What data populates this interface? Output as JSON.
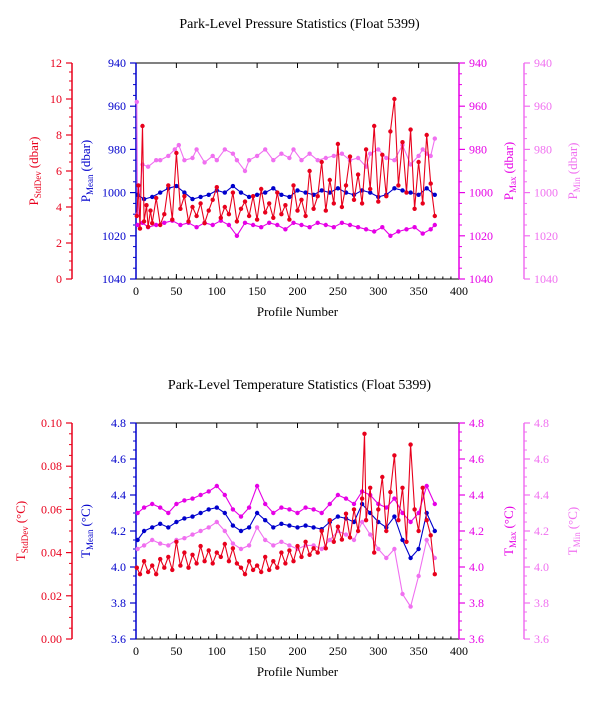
{
  "chart_data": [
    {
      "type": "line",
      "title": "Park-Level Pressure Statistics (Float 5399)",
      "xlabel": "Profile Number",
      "xlim": [
        0,
        400
      ],
      "x_ticks": [
        "0",
        "50",
        "100",
        "150",
        "200",
        "250",
        "300",
        "350",
        "400"
      ],
      "grid": false,
      "axes": [
        {
          "id": "std",
          "label": "P",
          "label_sub": "StdDev",
          "label_unit": "(dbar)",
          "color": "#e8001c",
          "range": [
            0,
            12
          ],
          "ticks": [
            "0",
            "2",
            "4",
            "6",
            "8",
            "10",
            "12"
          ],
          "inverted": false
        },
        {
          "id": "mean",
          "label": "P",
          "label_sub": "Mean",
          "label_unit": "(dbar)",
          "color": "#0000cc",
          "range": [
            940,
            1040
          ],
          "ticks": [
            "940",
            "960",
            "980",
            "1000",
            "1020",
            "1040"
          ],
          "inverted": true
        },
        {
          "id": "max",
          "label": "P",
          "label_sub": "Max",
          "label_unit": "(dbar)",
          "color": "#e600e6",
          "range": [
            940,
            1040
          ],
          "ticks": [
            "940",
            "960",
            "980",
            "1000",
            "1020",
            "1040"
          ],
          "inverted": true
        },
        {
          "id": "min",
          "label": "P",
          "label_sub": "Min",
          "label_unit": "(dbar)",
          "color": "#f070f0",
          "range": [
            940,
            1040
          ],
          "ticks": [
            "940",
            "960",
            "980",
            "1000",
            "1020",
            "1040"
          ],
          "inverted": true
        }
      ],
      "series": [
        {
          "axis": "min",
          "color": "#f070f0",
          "x": [
            1,
            2,
            8,
            15,
            25,
            30,
            40,
            48,
            53,
            60,
            70,
            75,
            85,
            95,
            100,
            110,
            120,
            125,
            135,
            140,
            150,
            160,
            170,
            180,
            190,
            195,
            205,
            215,
            225,
            235,
            245,
            255,
            265,
            275,
            285,
            290,
            300,
            310,
            320,
            330,
            340,
            350,
            355,
            360,
            365,
            370
          ],
          "values": [
            958,
            1010,
            987,
            988,
            985,
            985,
            983,
            980,
            978,
            985,
            984,
            980,
            986,
            983,
            985,
            980,
            982,
            985,
            990,
            985,
            983,
            980,
            985,
            982,
            984,
            980,
            985,
            982,
            985,
            984,
            983,
            982,
            985,
            984,
            988,
            982,
            980,
            984,
            985,
            978,
            987,
            983,
            980,
            982,
            983,
            975
          ]
        },
        {
          "axis": "max",
          "color": "#e600e6",
          "x": [
            2,
            8,
            15,
            25,
            35,
            45,
            55,
            65,
            75,
            85,
            95,
            105,
            115,
            125,
            135,
            145,
            155,
            165,
            175,
            185,
            195,
            205,
            215,
            225,
            235,
            245,
            255,
            265,
            275,
            285,
            295,
            305,
            315,
            325,
            335,
            345,
            355,
            365,
            370
          ],
          "values": [
            1015,
            1014,
            1016,
            1015,
            1014,
            1013,
            1015,
            1014,
            1016,
            1014,
            1015,
            1013,
            1015,
            1020,
            1014,
            1015,
            1016,
            1014,
            1015,
            1017,
            1014,
            1015,
            1016,
            1014,
            1015,
            1016,
            1014,
            1015,
            1016,
            1017,
            1018,
            1016,
            1020,
            1018,
            1017,
            1016,
            1019,
            1017,
            1015
          ]
        },
        {
          "axis": "mean",
          "color": "#0000cc",
          "x": [
            2,
            10,
            20,
            30,
            40,
            50,
            60,
            70,
            80,
            90,
            100,
            110,
            120,
            130,
            140,
            150,
            160,
            170,
            180,
            190,
            200,
            210,
            220,
            230,
            240,
            250,
            260,
            270,
            280,
            290,
            300,
            310,
            320,
            330,
            340,
            350,
            360,
            370
          ],
          "values": [
            1001,
            1003,
            1002,
            1000,
            998,
            997,
            1000,
            1003,
            1002,
            1001,
            999,
            1000,
            997,
            1000,
            1002,
            1001,
            1000,
            998,
            1001,
            1002,
            999,
            1000,
            1001,
            999,
            1000,
            998,
            1000,
            1001,
            999,
            1000,
            1002,
            1001,
            998,
            999,
            1000,
            1001,
            998,
            1001
          ]
        },
        {
          "axis": "std",
          "color": "#e8001c",
          "x": [
            1,
            3,
            5,
            8,
            10,
            13,
            15,
            18,
            20,
            25,
            30,
            35,
            40,
            45,
            50,
            55,
            60,
            65,
            70,
            75,
            80,
            85,
            90,
            95,
            100,
            105,
            110,
            115,
            120,
            125,
            130,
            135,
            140,
            145,
            150,
            155,
            160,
            165,
            170,
            175,
            180,
            185,
            190,
            195,
            200,
            205,
            210,
            215,
            220,
            225,
            230,
            235,
            240,
            245,
            250,
            255,
            260,
            265,
            270,
            275,
            280,
            285,
            290,
            295,
            300,
            305,
            310,
            315,
            320,
            325,
            330,
            335,
            340,
            345,
            350,
            355,
            360,
            365,
            370
          ],
          "values": [
            3.5,
            5.2,
            2.8,
            8.5,
            3.2,
            4.1,
            2.9,
            3.8,
            3.1,
            4.5,
            3.0,
            3.6,
            5.2,
            3.3,
            7.0,
            3.9,
            4.6,
            3.2,
            4.0,
            3.5,
            4.2,
            3.1,
            3.8,
            4.4,
            5.1,
            3.4,
            4.0,
            3.6,
            4.8,
            3.2,
            3.9,
            4.3,
            3.5,
            4.6,
            3.3,
            5.0,
            3.7,
            4.2,
            3.4,
            4.8,
            3.6,
            4.1,
            3.3,
            5.2,
            3.8,
            4.4,
            3.5,
            6.0,
            3.9,
            4.6,
            6.5,
            3.8,
            5.5,
            4.2,
            7.5,
            4.0,
            5.2,
            6.8,
            4.4,
            5.8,
            4.2,
            7.2,
            5.0,
            8.5,
            4.3,
            6.9,
            4.6,
            8.2,
            10.0,
            5.2,
            7.6,
            4.8,
            8.3,
            3.9,
            6.5,
            4.2,
            8.0,
            5.3,
            3.5
          ]
        }
      ]
    },
    {
      "type": "line",
      "title": "Park-Level Temperature Statistics (Float 5399)",
      "xlabel": "Profile Number",
      "xlim": [
        0,
        400
      ],
      "x_ticks": [
        "0",
        "50",
        "100",
        "150",
        "200",
        "250",
        "300",
        "350",
        "400"
      ],
      "grid": false,
      "axes": [
        {
          "id": "std",
          "label": "T",
          "label_sub": "StdDev",
          "label_unit": "(°C)",
          "color": "#e8001c",
          "range": [
            0,
            0.1
          ],
          "ticks": [
            "0.00",
            "0.02",
            "0.04",
            "0.06",
            "0.08",
            "0.10"
          ],
          "inverted": false
        },
        {
          "id": "mean",
          "label": "T",
          "label_sub": "Mean",
          "label_unit": "(°C)",
          "color": "#0000cc",
          "range": [
            3.6,
            4.8
          ],
          "ticks": [
            "3.6",
            "3.8",
            "4.0",
            "4.2",
            "4.4",
            "4.6",
            "4.8"
          ],
          "inverted": false
        },
        {
          "id": "max",
          "label": "T",
          "label_sub": "Max",
          "label_unit": "(°C)",
          "color": "#e600e6",
          "range": [
            3.6,
            4.8
          ],
          "ticks": [
            "3.6",
            "3.8",
            "4.0",
            "4.2",
            "4.4",
            "4.6",
            "4.8"
          ],
          "inverted": false
        },
        {
          "id": "min",
          "label": "T",
          "label_sub": "Min",
          "label_unit": "(°C)",
          "color": "#f070f0",
          "range": [
            3.6,
            4.8
          ],
          "ticks": [
            "3.6",
            "3.8",
            "4.0",
            "4.2",
            "4.4",
            "4.6",
            "4.8"
          ],
          "inverted": false
        }
      ],
      "series": [
        {
          "axis": "max",
          "color": "#e600e6",
          "x": [
            2,
            10,
            20,
            30,
            40,
            50,
            60,
            70,
            80,
            90,
            100,
            110,
            120,
            130,
            140,
            150,
            160,
            170,
            180,
            190,
            200,
            210,
            220,
            230,
            240,
            250,
            260,
            270,
            280,
            290,
            300,
            310,
            320,
            330,
            340,
            350,
            360,
            370
          ],
          "values": [
            4.3,
            4.33,
            4.35,
            4.33,
            4.3,
            4.35,
            4.37,
            4.38,
            4.4,
            4.42,
            4.45,
            4.4,
            4.32,
            4.28,
            4.33,
            4.45,
            4.35,
            4.3,
            4.33,
            4.32,
            4.3,
            4.33,
            4.32,
            4.3,
            4.35,
            4.4,
            4.38,
            4.35,
            4.42,
            4.4,
            4.35,
            4.33,
            4.38,
            4.3,
            4.25,
            4.3,
            4.45,
            4.35
          ]
        },
        {
          "axis": "mean",
          "color": "#0000cc",
          "x": [
            2,
            10,
            20,
            30,
            40,
            50,
            60,
            70,
            80,
            90,
            100,
            110,
            120,
            130,
            140,
            150,
            160,
            170,
            180,
            190,
            200,
            210,
            220,
            230,
            240,
            250,
            260,
            270,
            280,
            290,
            300,
            310,
            320,
            330,
            340,
            350,
            360,
            370
          ],
          "values": [
            4.15,
            4.2,
            4.22,
            4.24,
            4.22,
            4.25,
            4.27,
            4.28,
            4.3,
            4.32,
            4.33,
            4.3,
            4.23,
            4.2,
            4.22,
            4.3,
            4.26,
            4.22,
            4.24,
            4.23,
            4.22,
            4.23,
            4.22,
            4.21,
            4.25,
            4.28,
            4.27,
            4.25,
            4.35,
            4.3,
            4.25,
            4.22,
            4.28,
            4.15,
            4.05,
            4.1,
            4.3,
            4.2
          ]
        },
        {
          "axis": "min",
          "color": "#f070f0",
          "x": [
            2,
            10,
            20,
            30,
            40,
            50,
            60,
            70,
            80,
            90,
            100,
            110,
            120,
            130,
            140,
            150,
            160,
            170,
            180,
            190,
            200,
            210,
            220,
            230,
            240,
            250,
            260,
            270,
            280,
            290,
            300,
            310,
            320,
            330,
            340,
            350,
            360,
            370
          ],
          "values": [
            4.1,
            4.12,
            4.15,
            4.13,
            4.12,
            4.15,
            4.16,
            4.18,
            4.2,
            4.22,
            4.25,
            4.2,
            4.13,
            4.1,
            4.12,
            4.22,
            4.15,
            4.12,
            4.14,
            4.12,
            4.1,
            4.12,
            4.12,
            4.1,
            4.15,
            4.2,
            4.18,
            4.15,
            4.25,
            4.18,
            4.1,
            4.05,
            4.1,
            3.85,
            3.78,
            3.95,
            4.15,
            4.05
          ]
        },
        {
          "axis": "std",
          "color": "#e8001c",
          "x": [
            1,
            5,
            10,
            15,
            20,
            25,
            30,
            35,
            40,
            45,
            50,
            55,
            60,
            65,
            70,
            75,
            80,
            85,
            90,
            95,
            100,
            105,
            110,
            115,
            120,
            125,
            130,
            135,
            140,
            145,
            150,
            155,
            160,
            165,
            170,
            175,
            180,
            185,
            190,
            195,
            200,
            205,
            210,
            215,
            220,
            225,
            230,
            235,
            240,
            245,
            250,
            255,
            260,
            265,
            270,
            275,
            280,
            283,
            285,
            290,
            295,
            300,
            305,
            310,
            315,
            320,
            325,
            330,
            335,
            340,
            345,
            350,
            355,
            360,
            365,
            370
          ],
          "values": [
            0.033,
            0.03,
            0.036,
            0.031,
            0.034,
            0.03,
            0.037,
            0.033,
            0.038,
            0.032,
            0.045,
            0.034,
            0.04,
            0.033,
            0.039,
            0.035,
            0.043,
            0.036,
            0.041,
            0.035,
            0.04,
            0.038,
            0.044,
            0.036,
            0.042,
            0.035,
            0.033,
            0.03,
            0.036,
            0.032,
            0.034,
            0.031,
            0.038,
            0.032,
            0.036,
            0.033,
            0.04,
            0.035,
            0.041,
            0.036,
            0.043,
            0.038,
            0.045,
            0.039,
            0.042,
            0.04,
            0.05,
            0.042,
            0.055,
            0.045,
            0.052,
            0.046,
            0.058,
            0.047,
            0.06,
            0.05,
            0.065,
            0.095,
            0.055,
            0.07,
            0.04,
            0.06,
            0.075,
            0.05,
            0.068,
            0.085,
            0.055,
            0.07,
            0.045,
            0.09,
            0.06,
            0.05,
            0.07,
            0.055,
            0.048,
            0.03
          ]
        }
      ]
    }
  ]
}
